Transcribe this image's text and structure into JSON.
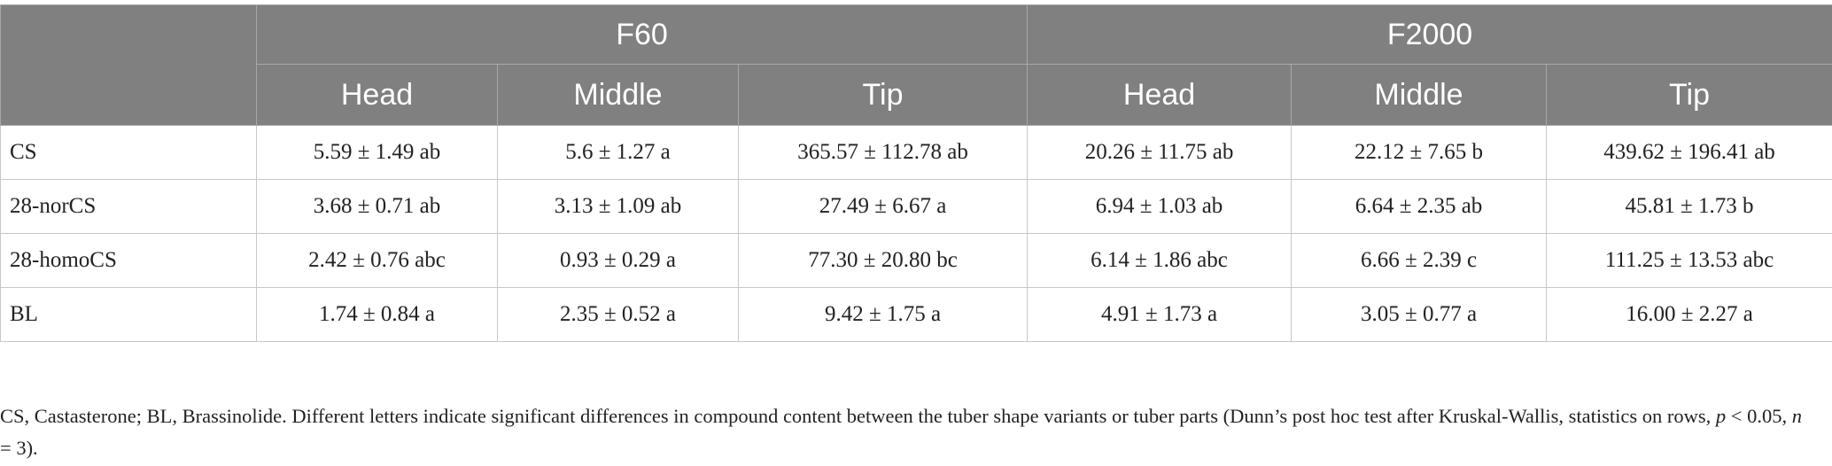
{
  "table": {
    "groups": [
      "F60",
      "F2000"
    ],
    "columns": [
      "Head",
      "Middle",
      "Tip",
      "Head",
      "Middle",
      "Tip"
    ],
    "rows": [
      [
        "CS",
        "5.59 ± 1.49 ab",
        "5.6 ± 1.27 a",
        "365.57 ± 112.78 ab",
        "20.26 ± 11.75 ab",
        "22.12 ± 7.65 b",
        "439.62 ± 196.41 ab"
      ],
      [
        "28-norCS",
        "3.68 ± 0.71 ab",
        "3.13 ± 1.09 ab",
        "27.49 ± 6.67 a",
        "6.94 ± 1.03 ab",
        "6.64 ± 2.35 ab",
        "45.81 ± 1.73 b"
      ],
      [
        "28-homoCS",
        "2.42 ± 0.76 abc",
        "0.93 ± 0.29 a",
        "77.30 ± 20.80 bc",
        "6.14 ± 1.86 abc",
        "6.66 ± 2.39 c",
        "111.25 ± 13.53 abc"
      ],
      [
        "BL",
        "1.74 ± 0.84 a",
        "2.35 ± 0.52 a",
        "9.42 ± 1.75 a",
        "4.91 ± 1.73 a",
        "3.05 ± 0.77 a",
        "16.00 ± 2.27 a"
      ]
    ]
  },
  "footnote": [
    "CS, Castasterone; BL, Brassinolide. Different letters indicate significant differences in compound content between the tuber shape variants or tuber parts (Dunn’s post hoc test after Kruskal-Wallis, statistics on rows, ",
    "p",
    " < 0.05, ",
    "n",
    " = 3)."
  ]
}
